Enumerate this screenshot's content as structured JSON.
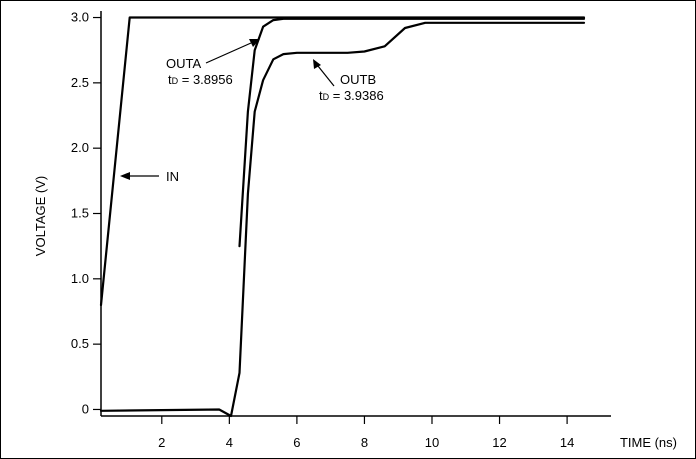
{
  "chart_data": {
    "type": "line",
    "title": "",
    "xlabel": "TIME (ns)",
    "ylabel": "VOLTAGE (V)",
    "xlim": [
      0.2,
      15.3
    ],
    "ylim": [
      -0.05,
      3.05
    ],
    "x_ticks": [
      "2",
      "4",
      "6",
      "8",
      "10",
      "12",
      "14"
    ],
    "y_ticks": [
      "0",
      "0.5",
      "1.0",
      "1.5",
      "2.0",
      "2.5",
      "3.0"
    ],
    "grid": false,
    "series": [
      {
        "name": "IN",
        "x": [
          0.2,
          1.05,
          14.5
        ],
        "y": [
          0.8,
          3.0,
          3.0
        ]
      },
      {
        "name": "OUTA",
        "x": [
          4.3,
          4.55,
          4.75,
          5.0,
          5.3,
          5.6,
          6.0,
          14.5
        ],
        "y": [
          1.25,
          2.28,
          2.75,
          2.93,
          2.98,
          2.99,
          2.99,
          2.99
        ]
      },
      {
        "name": "OUTB",
        "x": [
          0.2,
          3.7,
          4.05,
          4.3,
          4.55,
          4.75,
          5.0,
          5.3,
          5.6,
          6.0,
          7.5,
          8.0,
          8.6,
          9.2,
          9.8,
          14.5
        ],
        "y": [
          -0.01,
          0.0,
          -0.05,
          0.28,
          1.65,
          2.28,
          2.52,
          2.68,
          2.72,
          2.73,
          2.73,
          2.74,
          2.78,
          2.92,
          2.96,
          2.96
        ]
      }
    ],
    "annotations": {
      "in": {
        "label": "IN"
      },
      "outa": {
        "label": "OUTA",
        "td_prefix": "t",
        "td_sub": "D",
        "td_value": " = 3.8956"
      },
      "outb": {
        "label": "OUTB",
        "td_prefix": "t",
        "td_sub": "D",
        "td_value": " = 3.9386"
      }
    }
  }
}
